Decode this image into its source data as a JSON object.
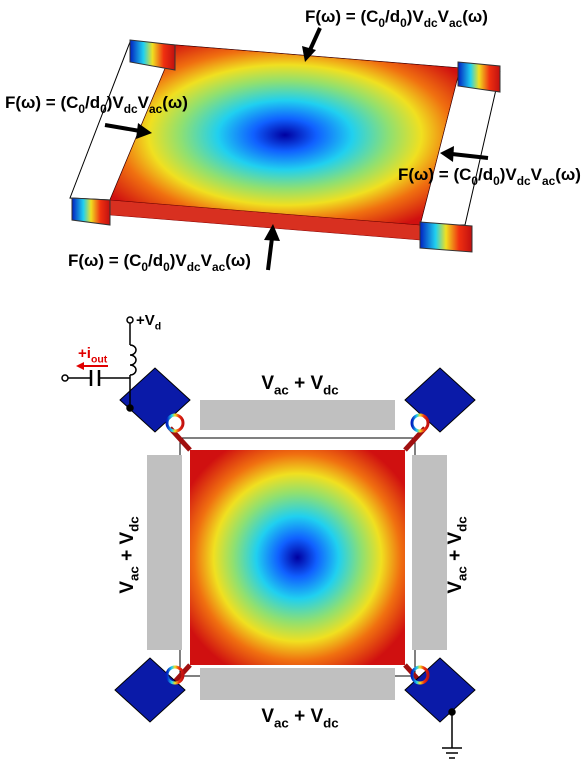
{
  "force_labels": [
    [
      "F(ω) = (C",
      "0",
      "/d",
      "0",
      ")V",
      "dc",
      "V",
      "ac",
      "(ω)"
    ],
    [
      "F(ω) = (C",
      "0",
      "/d",
      "0",
      ")V",
      "dc",
      "V",
      "ac",
      "(ω)"
    ],
    [
      "F(ω) = (C",
      "0",
      "/d",
      "0",
      ")V",
      "dc",
      "V",
      "ac",
      "(ω)"
    ],
    [
      "F(ω) = (C",
      "0",
      "/d",
      "0",
      ")V",
      "dc",
      "V",
      "ac",
      "(ω)"
    ]
  ],
  "electrode_labels": [
    [
      "V",
      "ac",
      " + V",
      "dc"
    ],
    [
      "V",
      "ac",
      " + V",
      "dc"
    ],
    [
      "V",
      "ac",
      " + V",
      "dc"
    ],
    [
      "V",
      "ac",
      " + V",
      "dc"
    ]
  ],
  "supply_label": [
    "+V",
    "d"
  ],
  "current_label": [
    "+i",
    "out"
  ]
}
